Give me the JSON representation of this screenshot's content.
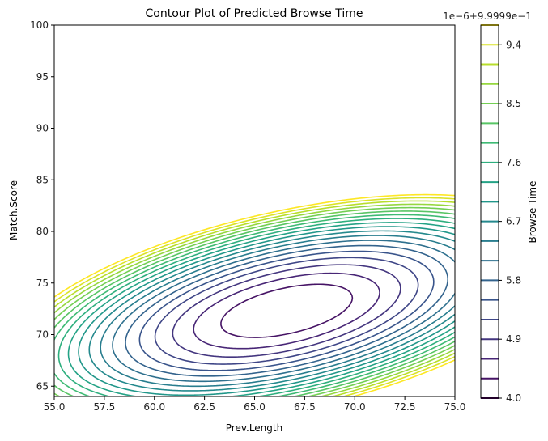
{
  "chart_data": {
    "type": "contour",
    "title": "Contour Plot of Predicted Browse Time",
    "xlabel": "Prev.Length",
    "ylabel": "Match.Score",
    "xlim": [
      55.0,
      75.0
    ],
    "ylim": [
      64.0,
      100.0
    ],
    "xticks": [
      "55.0",
      "57.5",
      "60.0",
      "62.5",
      "65.0",
      "67.5",
      "70.0",
      "72.5",
      "75.0"
    ],
    "yticks": [
      "65",
      "70",
      "75",
      "80",
      "85",
      "90",
      "95",
      "100"
    ],
    "colorbar": {
      "label": "Browse Time",
      "offset_text": "1e−6+9.9999e−1",
      "ticks": [
        "4.0",
        "4.9",
        "5.8",
        "6.7",
        "7.6",
        "8.5",
        "9.4"
      ],
      "levels": [
        4.0,
        4.3,
        4.6,
        4.9,
        5.2,
        5.5,
        5.8,
        6.1,
        6.4,
        6.7,
        7.0,
        7.3,
        7.6,
        7.9,
        8.2,
        8.5,
        8.8,
        9.1,
        9.4,
        9.7
      ],
      "colormap": "viridis"
    },
    "surface": {
      "min_at": [
        66.6,
        72.3
      ],
      "min_value": 4.0,
      "description": "elliptical contours centered near (66.6, 72.3), tilted, values increasing outward"
    },
    "grid": false,
    "legend": "colorbar-right"
  }
}
